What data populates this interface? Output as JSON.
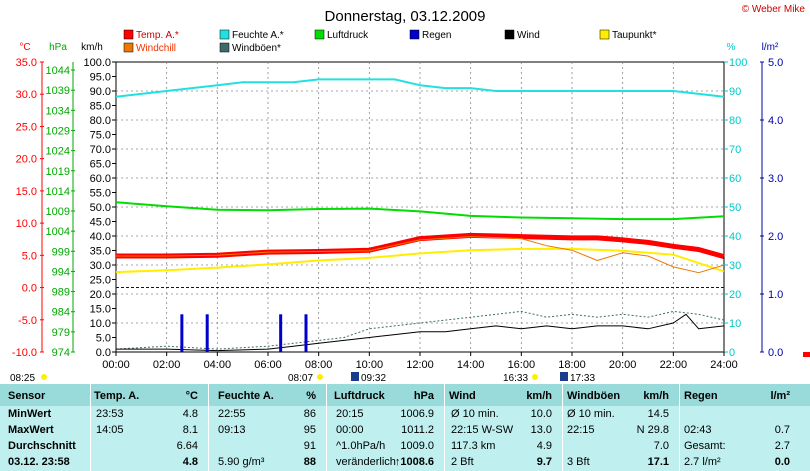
{
  "header": {
    "title": "Donnerstag, 03.12.2009",
    "copyright": "© Weber Mike"
  },
  "legend": [
    {
      "label": "Temp. A.*",
      "color": "#ff0000"
    },
    {
      "label": "Feuchte A.*",
      "color": "#22e0e0"
    },
    {
      "label": "Luftdruck",
      "color": "#00dd00"
    },
    {
      "label": "Regen",
      "color": "#0000cc"
    },
    {
      "label": "Wind",
      "color": "#000000"
    },
    {
      "label": "Taupunkt*",
      "color": "#ffee00"
    },
    {
      "label": "Windchill",
      "color": "#ee7700"
    },
    {
      "label": "Windböen*",
      "color": "#406a6a"
    }
  ],
  "axis_units": {
    "temp": "°C",
    "pressure": "hPa",
    "wind": "km/h",
    "humidity": "%",
    "rain": "l/m²"
  },
  "sun_times": {
    "sunrise": "08:07",
    "sunset": "16:33",
    "left_marker": "08:25",
    "event_a": "09:32",
    "event_b": "17:33"
  },
  "colors": {
    "temp_axis": "#ff0000",
    "pressure_axis": "#00aa00",
    "humidity_axis": "#00c8c8",
    "rain_axis": "#0000aa",
    "panel_bg": "#bfefef",
    "panel_header": "#99dada"
  },
  "chart_data": {
    "type": "line",
    "x_unit": "time of day (h)",
    "xlim": [
      0,
      24
    ],
    "x_ticks": [
      "00:00",
      "02:00",
      "04:00",
      "06:00",
      "08:00",
      "10:00",
      "12:00",
      "14:00",
      "16:00",
      "18:00",
      "20:00",
      "22:00",
      "24:00"
    ],
    "axes": {
      "temp": {
        "range": [
          -10,
          35
        ],
        "ticks": [
          "35.0",
          "30.0",
          "25.0",
          "20.0",
          "15.0",
          "10.0",
          "5.0",
          "0.0",
          "-5.0",
          "-10.0"
        ]
      },
      "pressure": {
        "range": [
          974,
          1046
        ],
        "ticks": [
          "1044",
          "1039",
          "1034",
          "1029",
          "1024",
          "1019",
          "1014",
          "1009",
          "1004",
          "999",
          "994",
          "989",
          "984",
          "979",
          "974"
        ]
      },
      "wind": {
        "range": [
          0,
          100
        ],
        "ticks": [
          "100.0",
          "95.0",
          "90.0",
          "85.0",
          "80.0",
          "75.0",
          "70.0",
          "65.0",
          "60.0",
          "55.0",
          "50.0",
          "45.0",
          "40.0",
          "35.0",
          "30.0",
          "25.0",
          "20.0",
          "15.0",
          "10.0",
          "5.0",
          "0.0"
        ]
      },
      "humidity": {
        "range": [
          0,
          100
        ],
        "ticks": [
          "100",
          "90",
          "80",
          "70",
          "60",
          "50",
          "40",
          "30",
          "20",
          "10",
          "0"
        ]
      },
      "rain": {
        "range": [
          0,
          5
        ],
        "ticks": [
          "5.0",
          "4.0",
          "3.0",
          "2.0",
          "1.0",
          "0.0"
        ]
      }
    },
    "series": [
      {
        "name": "Feuchte A.*",
        "axis": "humidity",
        "color": "#22e0e0",
        "x": [
          0,
          1,
          2,
          3,
          4,
          5,
          6,
          7,
          8,
          9,
          10,
          11,
          12,
          13,
          14,
          15,
          16,
          17,
          18,
          19,
          20,
          21,
          22,
          23,
          24
        ],
        "y": [
          88,
          89,
          90,
          91,
          92,
          93,
          93,
          93,
          94,
          94,
          94,
          94,
          92,
          91,
          91,
          90,
          90,
          90,
          90,
          90,
          90,
          90,
          90,
          89,
          88
        ]
      },
      {
        "name": "Luftdruck",
        "axis": "pressure",
        "color": "#00dd00",
        "x": [
          0,
          2,
          4,
          6,
          8,
          10,
          12,
          14,
          16,
          18,
          20,
          22,
          24
        ],
        "y": [
          1011.2,
          1010.2,
          1009.3,
          1009.2,
          1009.5,
          1009.6,
          1008.9,
          1007.8,
          1007.4,
          1007.2,
          1007.0,
          1007.0,
          1007.7
        ]
      },
      {
        "name": "Temp. A.*",
        "axis": "temp",
        "color": "#ff0000",
        "x": [
          0,
          2,
          4,
          6,
          8,
          10,
          12,
          14,
          16,
          18,
          19,
          20,
          21,
          22,
          23,
          24
        ],
        "y": [
          4.9,
          4.9,
          5.0,
          5.5,
          5.6,
          5.8,
          7.6,
          8.1,
          7.9,
          7.7,
          7.7,
          7.4,
          7.0,
          6.4,
          5.9,
          4.8
        ]
      },
      {
        "name": "Taupunkt*",
        "axis": "temp",
        "color": "#ffee00",
        "x": [
          0,
          2,
          4,
          6,
          8,
          10,
          12,
          14,
          16,
          18,
          20,
          22,
          23,
          24
        ],
        "y": [
          2.4,
          2.7,
          3.1,
          3.6,
          4.2,
          4.6,
          5.3,
          5.8,
          6.0,
          6.0,
          5.7,
          5.1,
          3.8,
          2.5
        ]
      },
      {
        "name": "Windchill",
        "axis": "temp",
        "color": "#ee7700",
        "x": [
          0,
          2,
          4,
          6,
          8,
          10,
          12,
          14,
          16,
          17,
          18,
          19,
          20,
          21,
          22,
          23,
          24
        ],
        "y": [
          4.9,
          4.9,
          5.0,
          5.5,
          5.6,
          5.7,
          7.4,
          7.9,
          7.6,
          6.5,
          5.8,
          4.2,
          5.4,
          4.9,
          3.2,
          2.3,
          3.5
        ]
      },
      {
        "name": "Windböen*",
        "axis": "wind",
        "color": "#406a6a",
        "x": [
          0,
          2,
          4,
          6,
          8,
          9,
          10,
          11,
          12,
          13,
          14,
          15,
          16,
          17,
          18,
          19,
          20,
          21,
          22,
          23,
          24
        ],
        "y": [
          1,
          2,
          1,
          2,
          4,
          5,
          8,
          9,
          10,
          11,
          12,
          13,
          14,
          12,
          13,
          12,
          13,
          12,
          14,
          13,
          11
        ]
      },
      {
        "name": "Wind",
        "axis": "wind",
        "color": "#000000",
        "x": [
          0,
          2,
          4,
          6,
          7,
          8,
          9,
          10,
          11,
          12,
          13,
          14,
          15,
          16,
          17,
          18,
          19,
          20,
          21,
          22,
          22.5,
          23,
          24
        ],
        "y": [
          1,
          1,
          0.5,
          1,
          2,
          3,
          4,
          5,
          6,
          7,
          7,
          8,
          9,
          8,
          9,
          8,
          9,
          9,
          8,
          10,
          13,
          8,
          9
        ]
      }
    ],
    "rain_bars": {
      "axis": "wind",
      "color": "#0000cc",
      "x": [
        2.6,
        3.6,
        6.5,
        7.5
      ],
      "y": [
        13,
        13,
        13,
        13
      ]
    }
  },
  "stats": {
    "headers": [
      "Sensor",
      "Temp. A.",
      "°C",
      "Feuchte A.",
      "%",
      "Luftdruck",
      "hPa",
      "Wind",
      "km/h",
      "Windböen",
      "km/h",
      "Regen",
      "l/m²"
    ],
    "row_labels": [
      "MinWert",
      "MaxWert",
      "Durchschnitt",
      "03.12. 23:58"
    ],
    "temp": [
      [
        "23:53",
        "4.8"
      ],
      [
        "14:05",
        "8.1"
      ],
      [
        "",
        "6.64"
      ],
      [
        "",
        "4.8"
      ]
    ],
    "humidity": [
      [
        "22:55",
        "86"
      ],
      [
        "09:13",
        "95"
      ],
      [
        "",
        "91"
      ],
      [
        "5.90 g/m³",
        "88"
      ]
    ],
    "pressure": [
      [
        "20:15",
        "1006.9"
      ],
      [
        "00:00",
        "1011.2"
      ],
      [
        "^1.0hPa/h",
        "1009.0"
      ],
      [
        "veränderlich",
        "↑1008.6"
      ]
    ],
    "wind": [
      [
        "Ø 10 min.",
        "10.0"
      ],
      [
        "22:15   W-SW",
        "13.0"
      ],
      [
        "117.3 km",
        "4.9"
      ],
      [
        "2 Bft",
        "9.7"
      ]
    ],
    "gusts": [
      [
        "Ø 10 min.",
        "14.5"
      ],
      [
        "22:15",
        "N 29.8"
      ],
      [
        "",
        "7.0"
      ],
      [
        "3 Bft",
        "17.1"
      ]
    ],
    "rain": [
      [
        "",
        ""
      ],
      [
        "02:43",
        "0.7"
      ],
      [
        "Gesamt:",
        "2.7"
      ],
      [
        "2.7 l/m²",
        "0.0"
      ]
    ]
  }
}
